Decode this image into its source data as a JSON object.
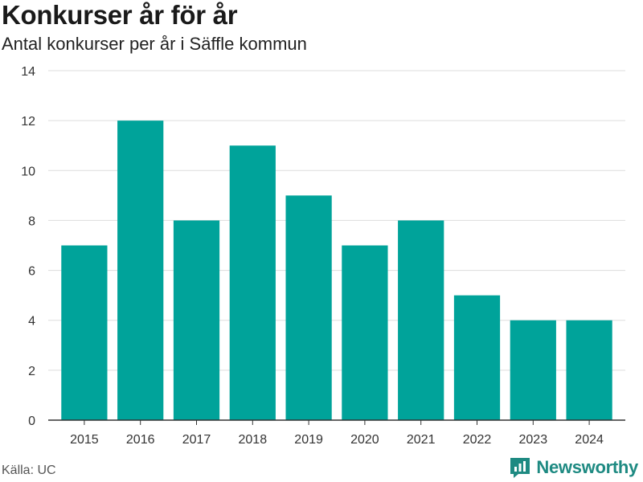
{
  "title": "Konkurser år för år",
  "subtitle": "Antal konkurser per år i Säffle kommun",
  "source": "Källa: UC",
  "brand": "Newsworthy",
  "colors": {
    "bar": "#00a39a",
    "grid": "#dddddd",
    "axis": "#333333",
    "brand": "#1e8a82"
  },
  "chart_data": {
    "type": "bar",
    "title": "Konkurser år för år",
    "subtitle": "Antal konkurser per år i Säffle kommun",
    "xlabel": "",
    "ylabel": "",
    "categories": [
      "2015",
      "2016",
      "2017",
      "2018",
      "2019",
      "2020",
      "2021",
      "2022",
      "2023",
      "2024"
    ],
    "values": [
      7,
      12,
      8,
      11,
      9,
      7,
      8,
      5,
      4,
      4
    ],
    "ylim": [
      0,
      14
    ],
    "yticks": [
      0,
      2,
      4,
      6,
      8,
      10,
      12,
      14
    ],
    "grid": true,
    "legend": "none"
  }
}
